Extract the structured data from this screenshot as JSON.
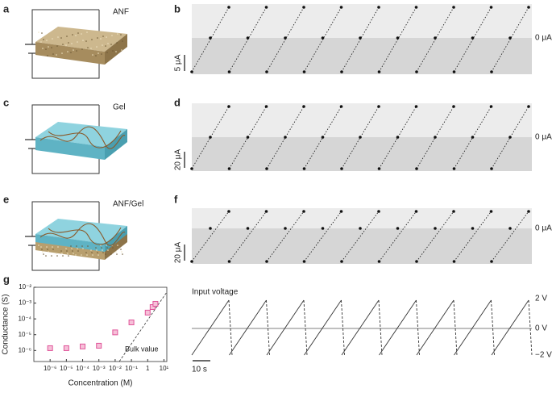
{
  "panel_labels": [
    "a",
    "b",
    "c",
    "d",
    "e",
    "f",
    "g"
  ],
  "schematics": [
    {
      "label": "ANF"
    },
    {
      "label": "Gel"
    },
    {
      "label": "ANF/Gel"
    }
  ],
  "traces": [
    {
      "zero_label": "0 μA",
      "scale_label": "5 μA"
    },
    {
      "zero_label": "0 μA",
      "scale_label": "20 μA"
    },
    {
      "zero_label": "0 μA",
      "scale_label": "20 μA"
    }
  ],
  "input_voltage": {
    "title": "Input voltage",
    "levels": [
      "2 V",
      "0 V",
      "−2 V"
    ],
    "scale_label": "10 s"
  },
  "chart_data": {
    "type": "scatter",
    "xlabel": "Concentration (M)",
    "ylabel": "Conductance (S)",
    "annotation": "Bulk value",
    "x": [
      1e-06,
      1e-05,
      0.0001,
      0.001,
      0.01,
      0.1,
      1,
      2,
      3
    ],
    "values": [
      1.4e-06,
      1.4e-06,
      1.8e-06,
      2e-06,
      1.4e-05,
      6e-05,
      0.00025,
      0.00056,
      0.0009
    ],
    "color": "#e0559a",
    "log_x": true,
    "log_y": true,
    "xlim": [
      1e-07,
      15
    ],
    "ylim": [
      2e-07,
      0.01
    ],
    "xticks": [
      {
        "value": 1e-06,
        "label": "10⁻⁶"
      },
      {
        "value": 1e-05,
        "label": "10⁻⁵"
      },
      {
        "value": 0.0001,
        "label": "10⁻⁴"
      },
      {
        "value": 0.001,
        "label": "10⁻³"
      },
      {
        "value": 0.01,
        "label": "10⁻²"
      },
      {
        "value": 0.1,
        "label": "10⁻¹"
      },
      1,
      {
        "value": 10,
        "label": "10¹"
      }
    ],
    "yticks": [
      {
        "value": 1e-06,
        "label": "10⁻⁶"
      },
      {
        "value": 1e-05,
        "label": "10⁻⁵"
      },
      {
        "value": 0.0001,
        "label": "10⁻⁴"
      },
      {
        "value": 0.001,
        "label": "10⁻³"
      },
      {
        "value": 0.01,
        "label": "10⁻²"
      }
    ]
  }
}
